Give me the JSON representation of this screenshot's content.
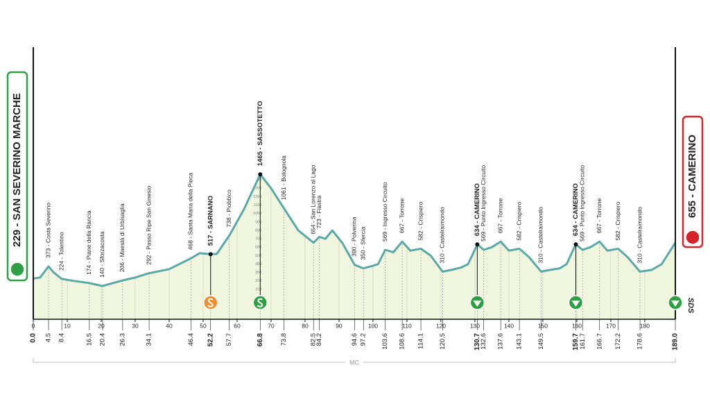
{
  "chart_data": {
    "type": "profile",
    "start_label": "229 - SAN SEVERINO MARCHE",
    "finish_label": "655 - CAMERINO",
    "footer": "MC",
    "logo": "SDS",
    "line_color": "#5aa9a6",
    "fill_color": "#f1f6df",
    "x": [
      0,
      2,
      4.5,
      6,
      8.4,
      12,
      16.5,
      20.4,
      23,
      26.3,
      30,
      34.1,
      40,
      46.4,
      49,
      52.2,
      54,
      57.7,
      62,
      66.8,
      70,
      73.8,
      78,
      82.5,
      84.2,
      86,
      88,
      91,
      94.6,
      97.2,
      100,
      101.5,
      103.6,
      106,
      108.6,
      111,
      114.1,
      117,
      120.5,
      123,
      126,
      128,
      130.7,
      132.6,
      135,
      137.6,
      140,
      143.1,
      146,
      149.5,
      152,
      155,
      157,
      159.7,
      161.7,
      164,
      166.7,
      169,
      172.2,
      175,
      178.6,
      182,
      185,
      189
    ],
    "values": [
      229,
      240,
      373,
      300,
      224,
      200,
      174,
      140,
      170,
      206,
      240,
      292,
      340,
      468,
      530,
      517,
      520,
      738,
      1050,
      1465,
      1300,
      1061,
      800,
      654,
      723,
      700,
      800,
      650,
      390,
      350,
      380,
      400,
      569,
      540,
      667,
      560,
      582,
      500,
      310,
      330,
      360,
      400,
      634,
      569,
      600,
      667,
      560,
      582,
      480,
      310,
      330,
      350,
      400,
      634,
      569,
      600,
      667,
      560,
      582,
      480,
      310,
      330,
      400,
      655
    ],
    "xlim": [
      0,
      189
    ],
    "xticks": [
      0,
      10,
      20,
      30,
      40,
      50,
      60,
      70,
      80,
      90,
      100,
      110,
      120,
      130,
      140,
      150,
      160,
      170,
      180
    ],
    "ylim": [
      -255,
      1500
    ],
    "yticks": [
      100,
      200,
      300,
      400,
      500,
      600,
      700,
      800,
      900,
      1000,
      1100,
      1200,
      1300,
      1400
    ],
    "start_km": {
      "value": 0,
      "label": "0.0"
    },
    "finish_km": {
      "value": 189,
      "label": "189.0"
    },
    "finish_marker": "lap",
    "waypoints": [
      {
        "km": 4.5,
        "elevation": 373,
        "label": "373 - Costa Severino"
      },
      {
        "km": 8.4,
        "elevation": 224,
        "label": "224 - Tolentino"
      },
      {
        "km": 16.5,
        "elevation": 174,
        "label": "174 - Piane della Rancia"
      },
      {
        "km": 20.4,
        "elevation": 140,
        "label": "140 - Sforzacosta"
      },
      {
        "km": 26.3,
        "elevation": 206,
        "label": "206 - Maestà di Urbisaglia"
      },
      {
        "km": 34.1,
        "elevation": 292,
        "label": "292 - Passo Ripe San Ginesio"
      },
      {
        "km": 46.4,
        "elevation": 468,
        "label": "468 - Santa Maria della Pieca"
      },
      {
        "km": 52.2,
        "elevation": 517,
        "label": "517 - SARNANO",
        "bold": true,
        "marker": "sprint"
      },
      {
        "km": 57.7,
        "elevation": 738,
        "label": "738 - Piobbico"
      },
      {
        "km": 66.8,
        "elevation": 1465,
        "label": "1465 - SASSOTETTO",
        "bold": true,
        "marker": "kom"
      },
      {
        "km": 73.8,
        "elevation": 1061,
        "label": "1061 - Bolognola"
      },
      {
        "km": 82.5,
        "elevation": 654,
        "label": "654 - San Lorenzo al Lago"
      },
      {
        "km": 84.2,
        "elevation": 723,
        "label": "723 - Fiastra"
      },
      {
        "km": 94.6,
        "elevation": 390,
        "label": "390 - Polverina"
      },
      {
        "km": 97.2,
        "elevation": 350,
        "label": "350 - Sfercia"
      },
      {
        "km": 103.6,
        "elevation": 569,
        "label": "569 - Ingresso Circuito"
      },
      {
        "km": 108.6,
        "elevation": 667,
        "label": "667 - Torrone"
      },
      {
        "km": 114.1,
        "elevation": 582,
        "label": "582 - Crispiero"
      },
      {
        "km": 120.5,
        "elevation": 310,
        "label": "310 - Castelraimondo"
      },
      {
        "km": 130.7,
        "elevation": 634,
        "label": "634 - CAMERINO",
        "bold": true,
        "marker": "lap"
      },
      {
        "km": 132.6,
        "elevation": 569,
        "label": "569 - Punto Ingresso Circuito"
      },
      {
        "km": 137.6,
        "elevation": 667,
        "label": "667 - Torrone"
      },
      {
        "km": 143.1,
        "elevation": 582,
        "label": "582 - Crispiero"
      },
      {
        "km": 149.5,
        "elevation": 310,
        "label": "310 - Castelraimondo"
      },
      {
        "km": 159.7,
        "elevation": 634,
        "label": "634 - CAMERINO",
        "bold": true,
        "marker": "lap"
      },
      {
        "km": 161.7,
        "elevation": 569,
        "label": "569 - Punto Ingresso Circuito"
      },
      {
        "km": 166.7,
        "elevation": 667,
        "label": "667 - Torrone"
      },
      {
        "km": 172.2,
        "elevation": 582,
        "label": "582 - Crispiero"
      },
      {
        "km": 178.6,
        "elevation": 310,
        "label": "310 - Castelraimondo"
      }
    ]
  }
}
